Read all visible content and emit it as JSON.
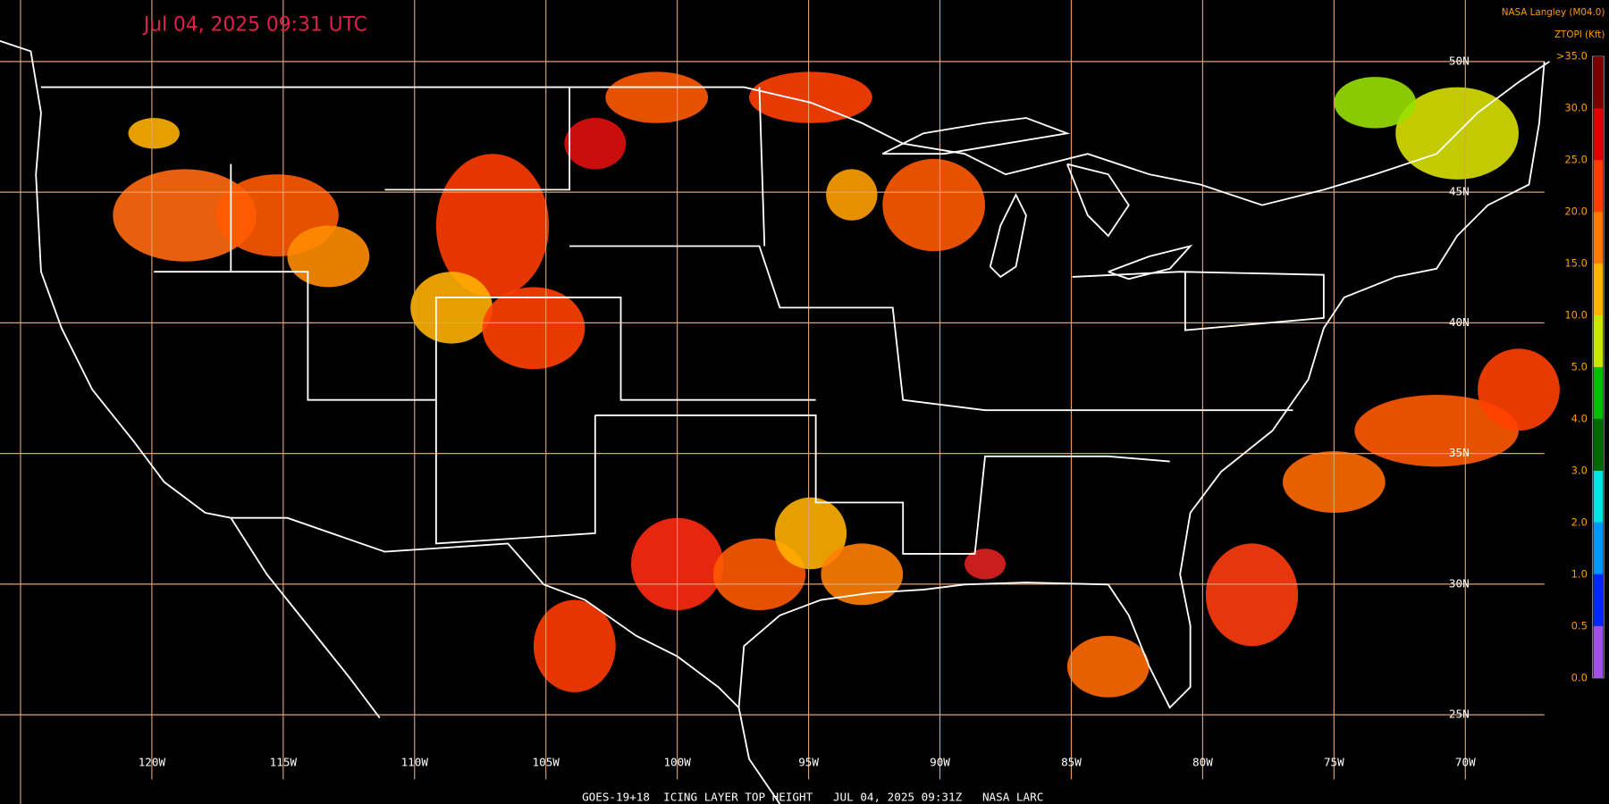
{
  "header": {
    "timestamp": "Jul 04, 2025 09:31 UTC",
    "source": "NASA Langley (M04.0)",
    "product": "ZTOPI (Kft)"
  },
  "legend": {
    "labels": [
      ">35.0",
      "30.0",
      "25.0",
      "20.0",
      "15.0",
      "10.0",
      "5.0",
      "4.0",
      "3.0",
      "2.0",
      "1.0",
      "0.5",
      "0.0"
    ],
    "colors": [
      "#7a0000",
      "#e00000",
      "#ff3c00",
      "#ff7800",
      "#ffb400",
      "#c8e600",
      "#00c000",
      "#006a00",
      "#00e6e6",
      "#0096ff",
      "#0028ff",
      "#a050e6"
    ]
  },
  "grid": {
    "longitudes": [
      "120W",
      "115W",
      "110W",
      "105W",
      "100W",
      "95W",
      "90W",
      "85W",
      "80W",
      "75W",
      "70W"
    ],
    "latitudes": [
      "50N",
      "45N",
      "40N",
      "35N",
      "30N",
      "25N"
    ]
  },
  "footer": "GOES-19+18  ICING LAYER TOP HEIGHT   JUL 04, 2025 09:31Z   NASA LARC"
}
